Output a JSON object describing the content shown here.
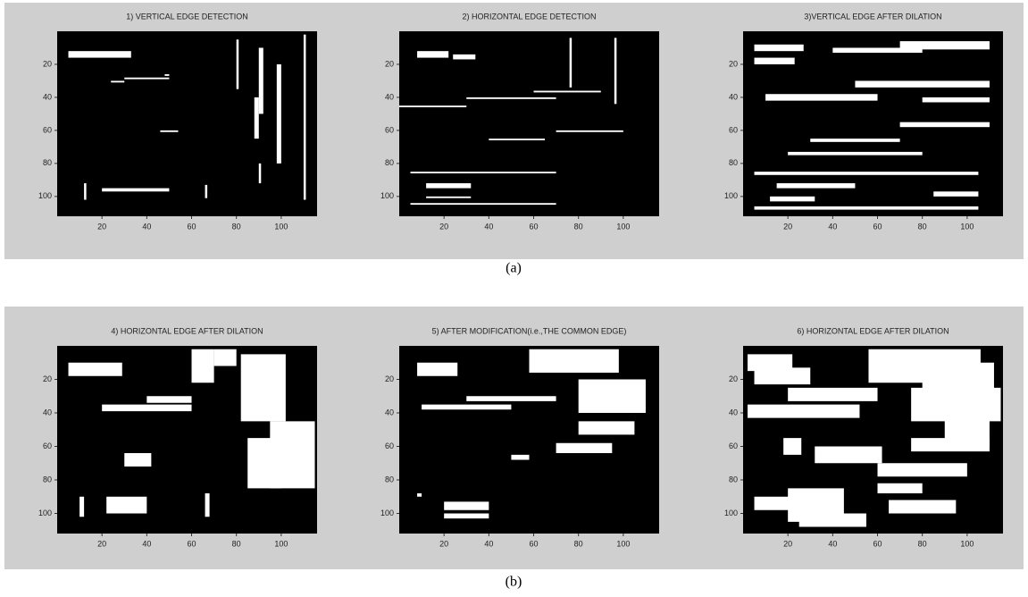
{
  "figures": [
    {
      "caption": "(a)",
      "panels": [
        {
          "title": "1) VERTICAL EDGE DETECTION",
          "xticks": [
            20,
            40,
            60,
            80,
            100
          ],
          "yticks": [
            20,
            40,
            60,
            80,
            100
          ]
        },
        {
          "title": "2) HORIZONTAL EDGE DETECTION",
          "xticks": [
            20,
            40,
            60,
            80,
            100
          ],
          "yticks": [
            20,
            40,
            60,
            80,
            100
          ]
        },
        {
          "title": "3)VERTICAL EDGE AFTER DILATION",
          "xticks": [
            20,
            40,
            60,
            80,
            100
          ],
          "yticks": [
            20,
            40,
            60,
            80,
            100
          ]
        }
      ]
    },
    {
      "caption": "(b)",
      "panels": [
        {
          "title": "4) HORIZONTAL EDGE AFTER DILATION",
          "xticks": [
            20,
            40,
            60,
            80,
            100
          ],
          "yticks": [
            20,
            40,
            60,
            80,
            100
          ]
        },
        {
          "title": "5) AFTER MODIFICATION(i.e.,THE COMMON EDGE)",
          "xticks": [
            20,
            40,
            60,
            80,
            100
          ],
          "yticks": [
            20,
            40,
            60,
            80,
            100
          ]
        },
        {
          "title": "6) HORIZONTAL EDGE AFTER DILATION",
          "xticks": [
            20,
            40,
            60,
            80,
            100
          ],
          "yticks": [
            20,
            40,
            60,
            80,
            100
          ]
        }
      ]
    }
  ]
}
